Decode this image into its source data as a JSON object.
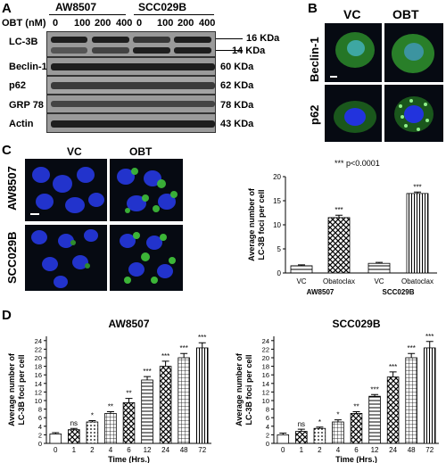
{
  "panels": {
    "a": "A",
    "b": "B",
    "c": "C",
    "d": "D"
  },
  "blot": {
    "header_left": "AW8507",
    "header_right": "SCC029B",
    "obt_label": "OBT (nM)",
    "doses": [
      "0",
      "100",
      "200",
      "400",
      "0",
      "100",
      "200",
      "400"
    ],
    "rows": [
      {
        "protein": "LC-3B",
        "size": "16 KDa",
        "size2": "14 KDa"
      },
      {
        "protein": "Beclin-1",
        "size": "60 KDa"
      },
      {
        "protein": "p62",
        "size": "62 KDa"
      },
      {
        "protein": "GRP 78",
        "size": "78 KDa"
      },
      {
        "protein": "Actin",
        "size": "43 KDa"
      }
    ]
  },
  "panel_b": {
    "col_vc": "VC",
    "col_obt": "OBT",
    "row1": "Beclin-1",
    "row2": "p62"
  },
  "panel_c_images": {
    "col_vc": "VC",
    "col_obt": "OBT",
    "row1": "AW8507",
    "row2": "SCC029B"
  },
  "colors": {
    "green": "#3fbf3a",
    "nucleus": "#2233dd",
    "background": "#060a12"
  },
  "chart_data": [
    {
      "type": "bar",
      "ylabel": "Average number of LC-3B foci per cell",
      "annotation": "*** p<0.0001",
      "categories": [
        "VC",
        "Obatoclax",
        "VC",
        "Obatoclax"
      ],
      "groups": [
        "AW8507",
        "SCC029B"
      ],
      "values": [
        1.5,
        11.5,
        2.0,
        16.5
      ],
      "errors": [
        0.2,
        0.5,
        0.2,
        0.3
      ],
      "significance": [
        "",
        "***",
        "",
        "***"
      ],
      "ylim": [
        0,
        20
      ],
      "yticks": [
        "0",
        "5",
        "10",
        "15",
        "20"
      ]
    },
    {
      "type": "bar",
      "title": "AW8507",
      "xlabel": "Time (Hrs.)",
      "ylabel": "Average number of LC-3B foci per cell",
      "categories": [
        "0",
        "1",
        "2",
        "4",
        "6",
        "12",
        "24",
        "48",
        "72"
      ],
      "values": [
        2.2,
        3.2,
        5.0,
        7.0,
        9.5,
        14.8,
        18.0,
        20.0,
        22.3
      ],
      "errors": [
        0.3,
        0.3,
        0.3,
        0.4,
        1.0,
        0.8,
        1.2,
        1.0,
        1.2
      ],
      "significance": [
        "",
        "ns",
        "*",
        "**",
        "**",
        "***",
        "***",
        "***",
        "***"
      ],
      "ylim": [
        0,
        25
      ],
      "yticks": [
        "0",
        "2",
        "4",
        "6",
        "8",
        "10",
        "12",
        "14",
        "16",
        "18",
        "20",
        "22",
        "24"
      ]
    },
    {
      "type": "bar",
      "title": "SCC029B",
      "xlabel": "Time (Hrs.)",
      "ylabel": "Average number of LC-3B foci per cell",
      "categories": [
        "0",
        "1",
        "2",
        "4",
        "6",
        "12",
        "24",
        "48",
        "72"
      ],
      "values": [
        2.0,
        2.8,
        3.5,
        5.0,
        7.0,
        11.0,
        15.5,
        20.0,
        22.3
      ],
      "errors": [
        0.4,
        0.5,
        0.3,
        0.5,
        0.4,
        0.4,
        1.2,
        1.0,
        1.5
      ],
      "significance": [
        "",
        "ns",
        "*",
        "*",
        "**",
        "***",
        "***",
        "***",
        "***"
      ],
      "ylim": [
        0,
        25
      ],
      "yticks": [
        "0",
        "2",
        "4",
        "6",
        "8",
        "10",
        "12",
        "14",
        "16",
        "18",
        "20",
        "22",
        "24"
      ]
    }
  ]
}
